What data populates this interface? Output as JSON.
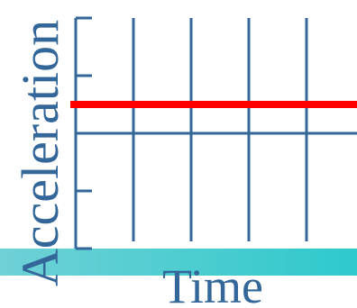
{
  "chart_data": {
    "type": "line",
    "xlabel": "Time",
    "ylabel": "Acceleration",
    "x": [
      0,
      4
    ],
    "ylim": [
      -2,
      2
    ],
    "xlim": [
      0,
      4
    ],
    "series": [
      {
        "x": [
          0,
          4
        ],
        "values": [
          0.5,
          0.5
        ]
      }
    ],
    "grid": "vertical",
    "colors": {
      "series": "#ff0000",
      "axis": "#336699",
      "label": "#336699",
      "band_start": "#6fd1d6",
      "band_end": "#2ec9cc"
    }
  }
}
